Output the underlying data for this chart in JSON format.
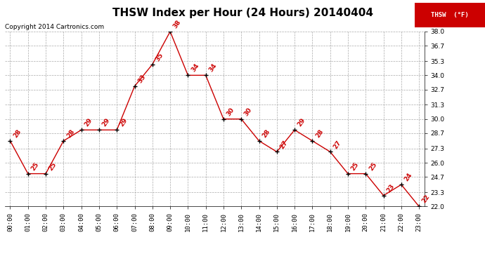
{
  "title": "THSW Index per Hour (24 Hours) 20140404",
  "copyright": "Copyright 2014 Cartronics.com",
  "legend_label": "THSW  (°F)",
  "hours": [
    0,
    1,
    2,
    3,
    4,
    5,
    6,
    7,
    8,
    9,
    10,
    11,
    12,
    13,
    14,
    15,
    16,
    17,
    18,
    19,
    20,
    21,
    22,
    23
  ],
  "values": [
    28,
    25,
    25,
    28,
    29,
    29,
    29,
    33,
    35,
    38,
    34,
    34,
    30,
    30,
    28,
    27,
    29,
    28,
    27,
    25,
    25,
    23,
    24,
    22
  ],
  "xlabels": [
    "00:00",
    "01:00",
    "02:00",
    "03:00",
    "04:00",
    "05:00",
    "06:00",
    "07:00",
    "08:00",
    "09:00",
    "10:00",
    "11:00",
    "12:00",
    "13:00",
    "14:00",
    "15:00",
    "16:00",
    "17:00",
    "18:00",
    "19:00",
    "20:00",
    "21:00",
    "22:00",
    "23:00"
  ],
  "line_color": "#cc0000",
  "marker_color": "#000000",
  "label_color": "#cc0000",
  "grid_color": "#aaaaaa",
  "background_color": "#ffffff",
  "legend_bg": "#cc0000",
  "legend_text_color": "#ffffff",
  "ylim_min": 22.0,
  "ylim_max": 38.0,
  "yticks": [
    22.0,
    23.3,
    24.7,
    26.0,
    27.3,
    28.7,
    30.0,
    31.3,
    32.7,
    34.0,
    35.3,
    36.7,
    38.0
  ],
  "title_fontsize": 11,
  "copyright_fontsize": 6.5,
  "label_fontsize": 6.5,
  "tick_fontsize": 6.5,
  "legend_fontsize": 6.5
}
